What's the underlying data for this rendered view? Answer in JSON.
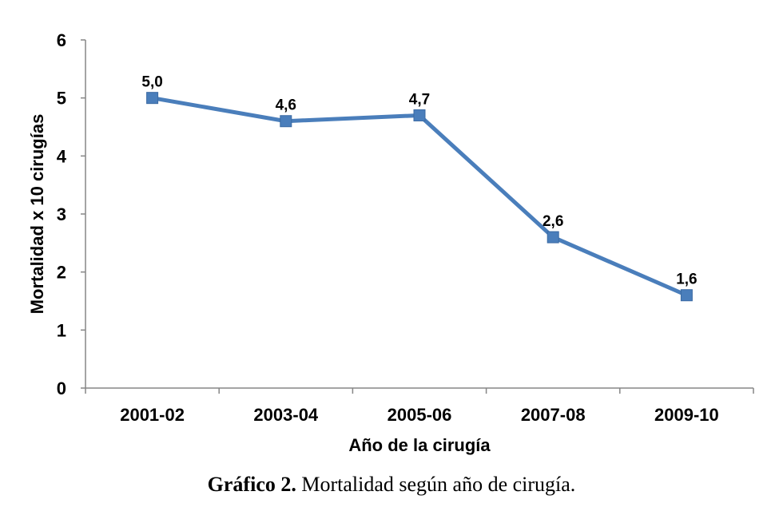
{
  "chart_data": {
    "type": "line",
    "categories": [
      "2001-02",
      "2003-04",
      "2005-06",
      "2007-08",
      "2009-10"
    ],
    "series": [
      {
        "values": [
          5.0,
          4.6,
          4.7,
          2.6,
          1.6
        ],
        "labels": [
          "5,0",
          "4,6",
          "4,7",
          "2,6",
          "1,6"
        ]
      }
    ],
    "yticks": [
      "0",
      "1",
      "2",
      "3",
      "4",
      "5",
      "6"
    ],
    "xlabel": "Año de la cirugía",
    "ylabel": "Mortalidad x 10 cirugías",
    "ylim": [
      0,
      6
    ],
    "grid": false,
    "color": "#4a7ebb"
  },
  "caption": {
    "prefix": "Gráfico 2.",
    "text": " Mortalidad según año de cirugía."
  }
}
